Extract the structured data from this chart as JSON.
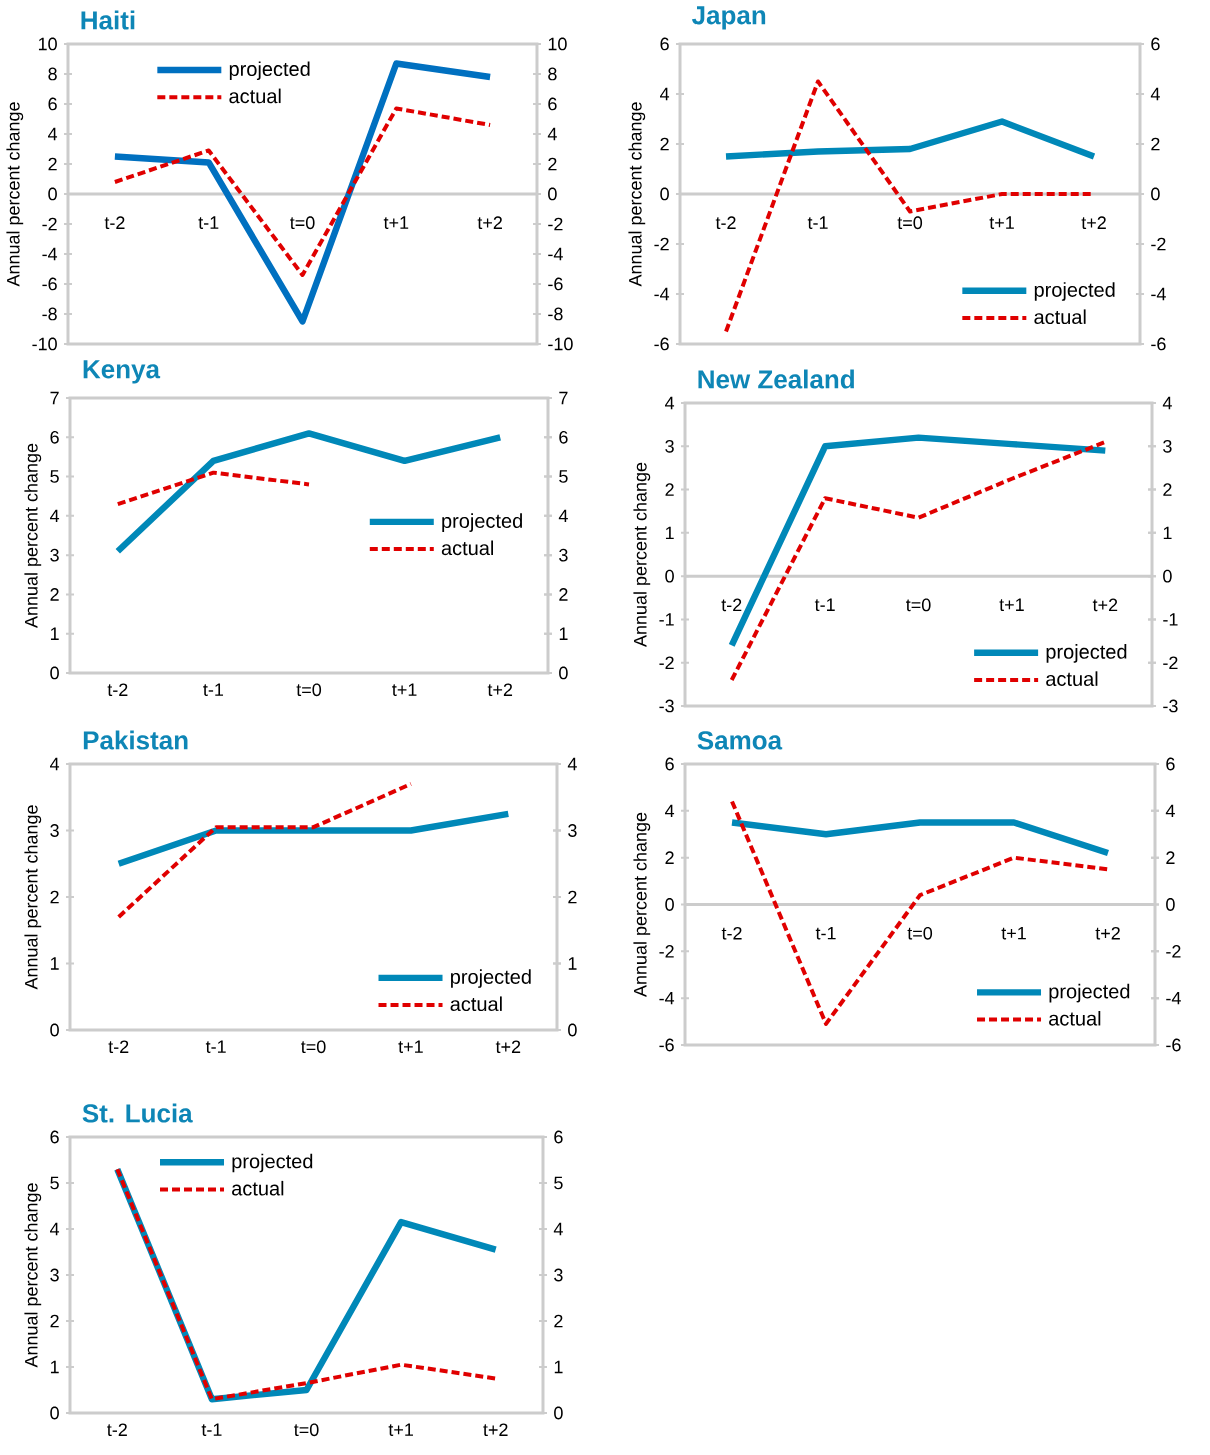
{
  "chart_data": [
    {
      "type": "line",
      "title": "Haiti",
      "ylabel": "Annual percent change",
      "categories": [
        "t-2",
        "t-1",
        "t=0",
        "t+1",
        "t+2"
      ],
      "series": [
        {
          "name": "projected",
          "color": "#0070c0",
          "line_style": "solid",
          "values": [
            2.5,
            2.1,
            -8.5,
            8.7,
            7.8
          ]
        },
        {
          "name": "actual",
          "color": "#e00000",
          "line_style": "dashed",
          "values": [
            0.8,
            2.9,
            -5.4,
            5.7,
            4.6
          ]
        }
      ],
      "ylim": [
        -10,
        10
      ],
      "yticks": [
        -10,
        -8,
        -6,
        -4,
        -2,
        0,
        2,
        4,
        6,
        8,
        10
      ],
      "y2lim": [
        -10,
        10
      ],
      "y2ticks": [
        -10,
        -8,
        -6,
        -4,
        -2,
        0,
        2,
        4,
        6,
        8,
        10
      ],
      "legend": "top left"
    },
    {
      "type": "line",
      "title": "Japan",
      "ylabel": "Annual percent change",
      "categories": [
        "t-2",
        "t-1",
        "t=0",
        "t+1",
        "t+2"
      ],
      "series": [
        {
          "name": "projected",
          "color": "#0088b8",
          "line_style": "solid",
          "values": [
            1.5,
            1.7,
            1.8,
            2.9,
            1.5
          ]
        },
        {
          "name": "actual",
          "color": "#e00000",
          "line_style": "dashed",
          "values": [
            -5.5,
            4.5,
            -0.7,
            0,
            0
          ]
        }
      ],
      "ylim": [
        -6,
        6
      ],
      "yticks": [
        -6,
        -4,
        -2,
        0,
        2,
        4,
        6
      ],
      "y2lim": [
        -6,
        6
      ],
      "y2ticks": [
        -6,
        -4,
        -2,
        0,
        2,
        4,
        6
      ],
      "legend": "bottom right"
    },
    {
      "type": "line",
      "title": "Kenya",
      "ylabel": "Annual percent change",
      "categories": [
        "t-2",
        "t-1",
        "t=0",
        "t+1",
        "t+2"
      ],
      "series": [
        {
          "name": "projected",
          "color": "#0088b8",
          "line_style": "solid",
          "values": [
            3.1,
            5.4,
            6.1,
            5.4,
            6.0
          ]
        },
        {
          "name": "actual",
          "color": "#e00000",
          "line_style": "dashed",
          "values": [
            4.3,
            5.1,
            4.8,
            null,
            null
          ]
        }
      ],
      "ylim": [
        0,
        7
      ],
      "yticks": [
        0,
        1,
        2,
        3,
        4,
        5,
        6,
        7
      ],
      "y2lim": [
        0,
        7
      ],
      "y2ticks": [
        0,
        1,
        2,
        3,
        4,
        5,
        6,
        7
      ],
      "legend": "right"
    },
    {
      "type": "line",
      "title": "New Zealand",
      "ylabel": "Annual percent change",
      "categories": [
        "t-2",
        "t-1",
        "t=0",
        "t+1",
        "t+2"
      ],
      "series": [
        {
          "name": "projected",
          "color": "#0088b8",
          "line_style": "solid",
          "values": [
            -1.6,
            3.0,
            3.2,
            3.05,
            2.9
          ]
        },
        {
          "name": "actual",
          "color": "#e00000",
          "line_style": "dashed",
          "values": [
            -2.4,
            1.8,
            1.35,
            2.25,
            3.1
          ]
        }
      ],
      "ylim": [
        -3,
        4
      ],
      "yticks": [
        -3,
        -2,
        -1,
        0,
        1,
        2,
        3,
        4
      ],
      "y2lim": [
        -3,
        4
      ],
      "y2ticks": [
        -3,
        -2,
        -1,
        0,
        1,
        2,
        3,
        4
      ],
      "legend": "bottom right"
    },
    {
      "type": "line",
      "title": "Pakistan",
      "ylabel": "Annual percent change",
      "categories": [
        "t-2",
        "t-1",
        "t=0",
        "t+1",
        "t+2"
      ],
      "series": [
        {
          "name": "projected",
          "color": "#0088b8",
          "line_style": "solid",
          "values": [
            2.5,
            3.0,
            3.0,
            3.0,
            3.25
          ]
        },
        {
          "name": "actual",
          "color": "#e00000",
          "line_style": "dashed",
          "values": [
            1.7,
            3.05,
            3.05,
            3.7,
            null
          ]
        }
      ],
      "ylim": [
        0,
        4
      ],
      "yticks": [
        0,
        1,
        2,
        3,
        4
      ],
      "y2lim": [
        0,
        4
      ],
      "y2ticks": [
        0,
        1,
        2,
        3,
        4
      ],
      "legend": "bottom right"
    },
    {
      "type": "line",
      "title": "Samoa",
      "ylabel": "Annual percent change",
      "categories": [
        "t-2",
        "t-1",
        "t=0",
        "t+1",
        "t+2"
      ],
      "series": [
        {
          "name": "projected",
          "color": "#0088b8",
          "line_style": "solid",
          "values": [
            3.5,
            3.0,
            3.5,
            3.5,
            2.2
          ]
        },
        {
          "name": "actual",
          "color": "#e00000",
          "line_style": "dashed",
          "values": [
            4.4,
            -5.1,
            0.4,
            2.0,
            1.5
          ]
        }
      ],
      "ylim": [
        -6,
        6
      ],
      "yticks": [
        -6,
        -4,
        -2,
        0,
        2,
        4,
        6
      ],
      "y2lim": [
        -6,
        6
      ],
      "y2ticks": [
        -6,
        -4,
        -2,
        0,
        2,
        4,
        6
      ],
      "legend": "bottom right"
    },
    {
      "type": "line",
      "title": "St. Lucia",
      "ylabel": "Annual percent change",
      "categories": [
        "t-2",
        "t-1",
        "t=0",
        "t+1",
        "t+2"
      ],
      "series": [
        {
          "name": "projected",
          "color": "#0088b8",
          "line_style": "solid",
          "values": [
            5.3,
            0.3,
            0.5,
            4.15,
            3.55
          ]
        },
        {
          "name": "actual",
          "color": "#e00000",
          "line_style": "dashed",
          "values": [
            5.3,
            0.3,
            0.65,
            1.05,
            0.75
          ]
        }
      ],
      "ylim": [
        0,
        6
      ],
      "yticks": [
        0,
        1,
        2,
        3,
        4,
        5,
        6
      ],
      "y2lim": [
        0,
        6
      ],
      "y2ticks": [
        0,
        1,
        2,
        3,
        4,
        5,
        6
      ],
      "legend": "top left"
    }
  ]
}
